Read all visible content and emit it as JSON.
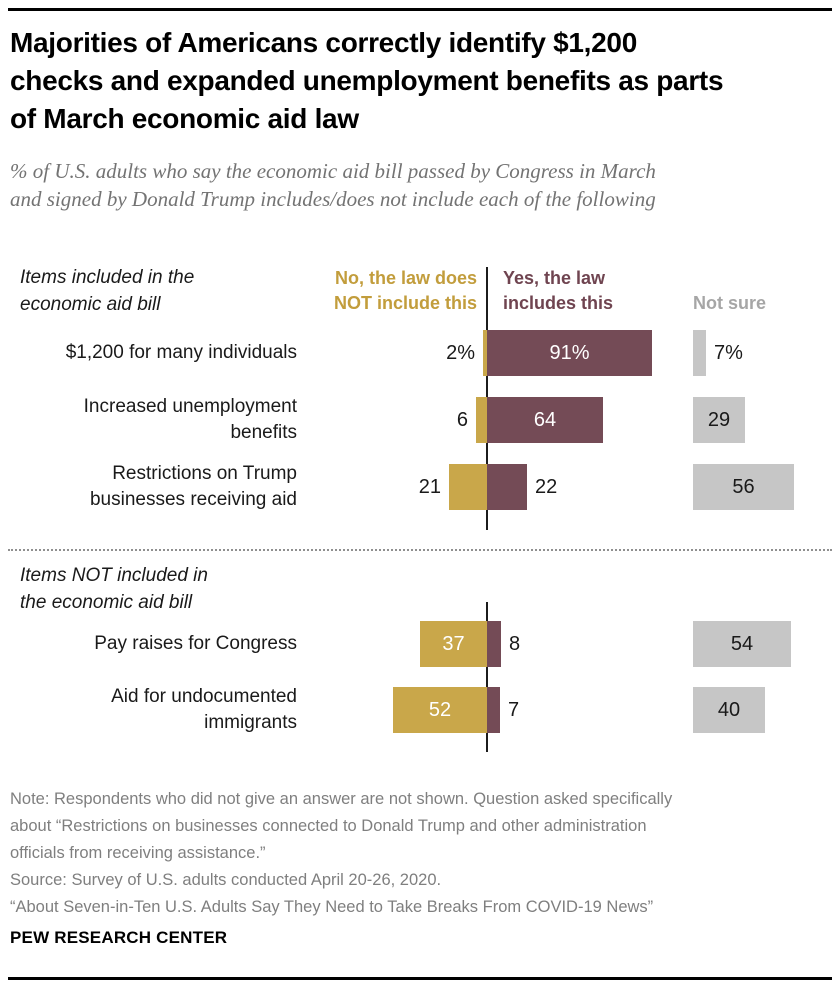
{
  "header": {
    "title": "Majorities of Americans correctly identify $1,200\nchecks and expanded unemployment benefits as parts\nof March economic aid law",
    "subtitle": "% of U.S. adults who say the economic aid bill passed by Congress in March\nand signed by Donald Trump includes/does not include each of the following"
  },
  "colors": {
    "no_bar": "#C9A74A",
    "no_header_text": "#C29D3C",
    "yes_bar": "#744B56",
    "yes_header_text": "#6F4450",
    "not_sure_bar": "#C6C6C6",
    "not_sure_header_text": "#A6A6A6",
    "inside_label": "#FFFFFF",
    "outside_label": "#1A1A1A"
  },
  "chart_data": {
    "type": "bar",
    "title": "Majorities of Americans correctly identify $1,200 checks and expanded unemployment benefits as parts of March economic aid law",
    "legend": [
      {
        "name": "no",
        "label": "No, the law does\nNOT include this"
      },
      {
        "name": "yes",
        "label": "Yes, the law\nincludes this"
      },
      {
        "name": "not_sure",
        "label": "Not sure"
      }
    ],
    "legend_position": "top",
    "grid": false,
    "xlim": [
      -60,
      100
    ],
    "sections": [
      {
        "label": "Items included in the\neconomic aid bill"
      },
      {
        "label": "Items NOT included in\nthe economic aid bill"
      }
    ],
    "rows": [
      {
        "section": 0,
        "label": "$1,200 for many individuals",
        "no": 2,
        "yes": 91,
        "not_sure": 7,
        "no_label": "2%",
        "yes_label": "91%",
        "not_sure_label": "7%"
      },
      {
        "section": 0,
        "label": "Increased unemployment\nbenefits",
        "no": 6,
        "yes": 64,
        "not_sure": 29,
        "no_label": "6",
        "yes_label": "64",
        "not_sure_label": "29"
      },
      {
        "section": 0,
        "label": "Restrictions on Trump\nbusinesses receiving aid",
        "no": 21,
        "yes": 22,
        "not_sure": 56,
        "no_label": "21",
        "yes_label": "22",
        "not_sure_label": "56"
      },
      {
        "section": 1,
        "label": "Pay raises for Congress",
        "no": 37,
        "yes": 8,
        "not_sure": 54,
        "no_label": "37",
        "yes_label": "8",
        "not_sure_label": "54"
      },
      {
        "section": 1,
        "label": "Aid for undocumented\nimmigrants",
        "no": 52,
        "yes": 7,
        "not_sure": 40,
        "no_label": "52",
        "yes_label": "7",
        "not_sure_label": "40"
      }
    ]
  },
  "footer": {
    "note": "Note: Respondents who did not give an answer are not shown. Question asked specifically\nabout “Restrictions on businesses connected to Donald Trump and other administration\nofficials from receiving assistance.”",
    "source": "Source: Survey of U.S. adults conducted April 20-26, 2020.",
    "report": "“About Seven-in-Ten U.S. Adults Say They Need to Take Breaks From COVID-19 News”",
    "brand": "PEW RESEARCH CENTER"
  }
}
